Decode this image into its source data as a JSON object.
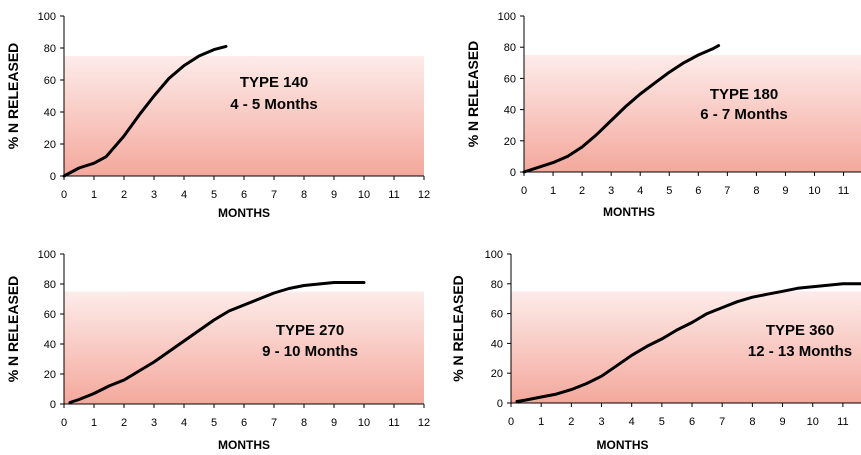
{
  "chart_data": [
    {
      "type": "line",
      "ylabel": "% N RELEASED",
      "xlabel": "MONTHS",
      "xlim": [
        0,
        12
      ],
      "ylim": [
        0,
        100
      ],
      "xticks": [
        0,
        1,
        2,
        3,
        4,
        5,
        6,
        7,
        8,
        9,
        10,
        11,
        12
      ],
      "yticks": [
        0,
        20,
        40,
        60,
        80,
        100
      ],
      "annotation": [
        "TYPE  140",
        "4 - 5  Months"
      ],
      "x": [
        0,
        0.5,
        1,
        1.4,
        2,
        2.5,
        3,
        3.5,
        4,
        4.5,
        5,
        5.4
      ],
      "y": [
        0,
        5,
        8,
        12,
        25,
        38,
        50,
        61,
        69,
        75,
        79,
        81
      ]
    },
    {
      "type": "line",
      "ylabel": "% N RELEASED",
      "xlabel": "MONTHS",
      "xlim": [
        0,
        11.6
      ],
      "ylim": [
        0,
        100
      ],
      "xticks": [
        0,
        1,
        2,
        3,
        4,
        5,
        6,
        7,
        8,
        9,
        10,
        11
      ],
      "yticks": [
        0,
        20,
        40,
        60,
        80,
        100
      ],
      "annotation": [
        "TYPE  180",
        "6 - 7  Months"
      ],
      "x": [
        0,
        0.5,
        1,
        1.5,
        2,
        2.5,
        3,
        3.5,
        4,
        4.5,
        5,
        5.5,
        6,
        6.5,
        6.7
      ],
      "y": [
        0,
        3,
        6,
        10,
        16,
        24,
        33,
        42,
        50,
        57,
        64,
        70,
        75,
        79,
        81
      ]
    },
    {
      "type": "line",
      "ylabel": "% N RELEASED",
      "xlabel": "MONTHS",
      "xlim": [
        0,
        12
      ],
      "ylim": [
        0,
        100
      ],
      "xticks": [
        0,
        1,
        2,
        3,
        4,
        5,
        6,
        7,
        8,
        9,
        10,
        11,
        12
      ],
      "yticks": [
        0,
        20,
        40,
        60,
        80,
        100
      ],
      "annotation": [
        "TYPE  270",
        "9 - 10  Months"
      ],
      "x": [
        0.2,
        0.5,
        1,
        1.5,
        2,
        2.5,
        3,
        3.5,
        4,
        4.5,
        5,
        5.5,
        6,
        6.5,
        7,
        7.5,
        8,
        8.5,
        9,
        9.5,
        10
      ],
      "y": [
        1,
        3,
        7,
        12,
        16,
        22,
        28,
        35,
        42,
        49,
        56,
        62,
        66,
        70,
        74,
        77,
        79,
        80,
        81,
        81,
        81
      ]
    },
    {
      "type": "line",
      "ylabel": "% N RELEASED",
      "xlabel": "MONTHS",
      "xlim": [
        0,
        11.6
      ],
      "ylim": [
        0,
        100
      ],
      "xticks": [
        0,
        1,
        2,
        3,
        4,
        5,
        6,
        7,
        8,
        9,
        10,
        11
      ],
      "yticks": [
        0,
        20,
        40,
        60,
        80,
        100
      ],
      "annotation": [
        "TYPE  360",
        "12 - 13  Months"
      ],
      "x": [
        0.2,
        0.5,
        1,
        1.5,
        2,
        2.5,
        3,
        3.5,
        4,
        4.5,
        5,
        5.5,
        6,
        6.5,
        7,
        7.5,
        8,
        8.5,
        9,
        9.5,
        10,
        10.5,
        11,
        11.6
      ],
      "y": [
        1,
        2,
        4,
        6,
        9,
        13,
        18,
        25,
        32,
        38,
        43,
        49,
        54,
        60,
        64,
        68,
        71,
        73,
        75,
        77,
        78,
        79,
        80,
        80
      ]
    }
  ]
}
